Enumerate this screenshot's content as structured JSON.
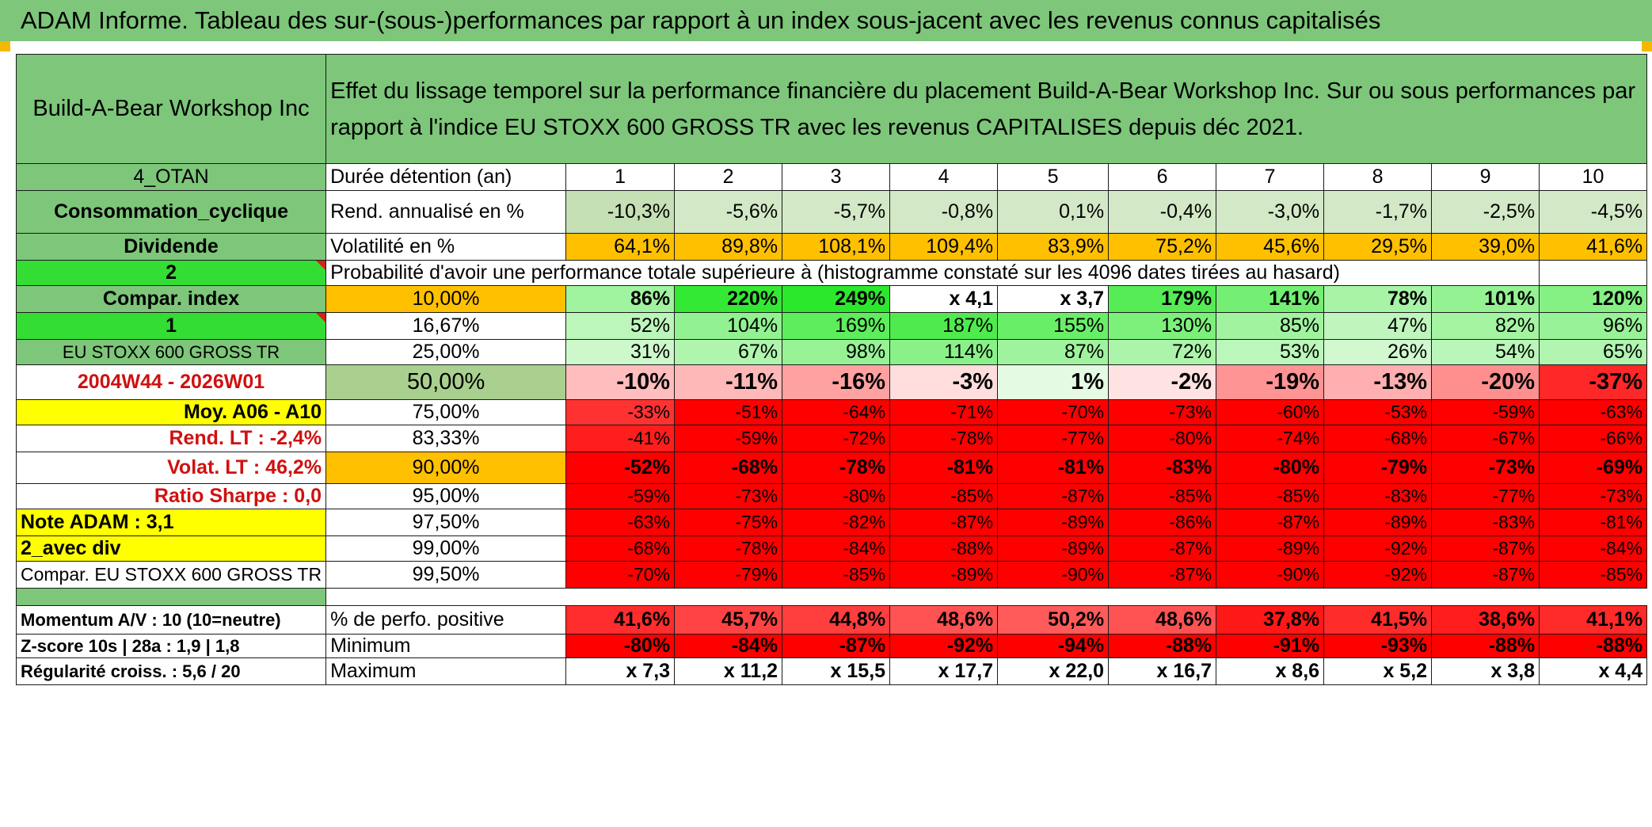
{
  "banner": "ADAM Informe. Tableau des sur-(sous-)performances par rapport à un index sous-jacent avec les revenus connus capitalisés",
  "company": "Build-A-Bear Workshop Inc",
  "description": "Effet du lissage temporel sur la performance financière du placement Build-A-Bear Workshop Inc. Sur ou sous performances par rapport à l'indice EU STOXX 600 GROSS TR avec les revenus CAPITALISES depuis déc 2021.",
  "left": {
    "code": "4_OTAN",
    "sector": "Consommation_cyclique",
    "dividend": "Dividende",
    "num2": "2",
    "compar_index": "Compar. index",
    "num1": "1",
    "index_name": "EU STOXX 600 GROSS TR",
    "period": "2004W44 - 2026W01",
    "moy": "Moy. A06 - A10",
    "rend_lt": "Rend. LT :   -2,4%",
    "volat_lt": "Volat. LT :   46,2%",
    "sharpe": "Ratio Sharpe :    0,0",
    "note": "Note ADAM : 3,1",
    "avec_div": "2_avec div",
    "compar_full": "Compar. EU STOXX 600 GROSS TR",
    "momentum": "Momentum A/V : 10 (10=neutre)",
    "zscore": "Z-score 10s | 28a : 1,9 | 1,8",
    "regularite": "Régularité croiss. : 5,6 / 20"
  },
  "labels": {
    "duree": "Durée détention (an)",
    "rend": "Rend. annualisé en %",
    "volat": "Volatilité en %",
    "proba": "Probabilité d'avoir une performance totale supérieure à (histogramme constaté sur les 4096 dates tirées au hasard)",
    "pos": "% de perfo. positive",
    "min": "Minimum",
    "max": "Maximum"
  },
  "years": [
    "1",
    "2",
    "3",
    "4",
    "5",
    "6",
    "7",
    "8",
    "9",
    "10"
  ],
  "rend": [
    "-10,3%",
    "-5,6%",
    "-5,7%",
    "-0,8%",
    "0,1%",
    "-0,4%",
    "-3,0%",
    "-1,7%",
    "-2,5%",
    "-4,5%"
  ],
  "volat": [
    "64,1%",
    "89,8%",
    "108,1%",
    "109,4%",
    "83,9%",
    "75,2%",
    "45,6%",
    "29,5%",
    "39,0%",
    "41,6%"
  ],
  "pct": [
    "10,00%",
    "16,67%",
    "25,00%",
    "50,00%",
    "75,00%",
    "83,33%",
    "90,00%",
    "95,00%",
    "97,50%",
    "99,00%",
    "99,50%"
  ],
  "prob_rows": [
    [
      "86%",
      "220%",
      "249%",
      "x 4,1",
      "x 3,7",
      "179%",
      "141%",
      "78%",
      "101%",
      "120%"
    ],
    [
      "52%",
      "104%",
      "169%",
      "187%",
      "155%",
      "130%",
      "85%",
      "47%",
      "82%",
      "96%"
    ],
    [
      "31%",
      "67%",
      "98%",
      "114%",
      "87%",
      "72%",
      "53%",
      "26%",
      "54%",
      "65%"
    ],
    [
      "-10%",
      "-11%",
      "-16%",
      "-3%",
      "1%",
      "-2%",
      "-19%",
      "-13%",
      "-20%",
      "-37%"
    ],
    [
      "-33%",
      "-51%",
      "-64%",
      "-71%",
      "-70%",
      "-73%",
      "-60%",
      "-53%",
      "-59%",
      "-63%"
    ],
    [
      "-41%",
      "-59%",
      "-72%",
      "-78%",
      "-77%",
      "-80%",
      "-74%",
      "-68%",
      "-67%",
      "-66%"
    ],
    [
      "-52%",
      "-68%",
      "-78%",
      "-81%",
      "-81%",
      "-83%",
      "-80%",
      "-79%",
      "-73%",
      "-69%"
    ],
    [
      "-59%",
      "-73%",
      "-80%",
      "-85%",
      "-87%",
      "-85%",
      "-85%",
      "-83%",
      "-77%",
      "-73%"
    ],
    [
      "-63%",
      "-75%",
      "-82%",
      "-87%",
      "-89%",
      "-86%",
      "-87%",
      "-89%",
      "-83%",
      "-81%"
    ],
    [
      "-68%",
      "-78%",
      "-84%",
      "-88%",
      "-89%",
      "-87%",
      "-89%",
      "-92%",
      "-87%",
      "-84%"
    ],
    [
      "-70%",
      "-79%",
      "-85%",
      "-89%",
      "-90%",
      "-87%",
      "-90%",
      "-92%",
      "-87%",
      "-85%"
    ]
  ],
  "pos": [
    "41,6%",
    "45,7%",
    "44,8%",
    "48,6%",
    "50,2%",
    "48,6%",
    "37,8%",
    "41,5%",
    "38,6%",
    "41,1%"
  ],
  "min": [
    "-80%",
    "-84%",
    "-87%",
    "-92%",
    "-94%",
    "-88%",
    "-91%",
    "-93%",
    "-88%",
    "-88%"
  ],
  "max": [
    "x 7,3",
    "x 11,2",
    "x 15,5",
    "x 17,7",
    "x 22,0",
    "x 16,7",
    "x 8,6",
    "x 5,2",
    "x 3,8",
    "x 4,4"
  ],
  "colors": {
    "header_green": "#7dc67a",
    "bright_green": "#33dd33",
    "orange": "#ffc000",
    "yellow": "#ffff00",
    "rend_green": "#c5e0b4",
    "red": "#ff0000",
    "label_red": "#d01010"
  }
}
